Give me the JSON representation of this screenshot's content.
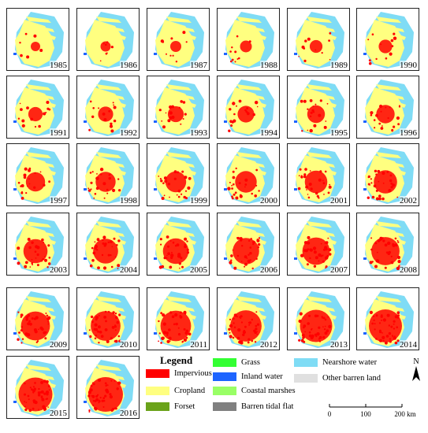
{
  "years": [
    "1985",
    "1986",
    "1987",
    "1988",
    "1989",
    "1990",
    "1991",
    "1992",
    "1993",
    "1994",
    "1995",
    "1996",
    "1997",
    "1998",
    "1999",
    "2000",
    "2001",
    "2002",
    "2003",
    "2004",
    "2005",
    "2006",
    "2007",
    "2008",
    "2009",
    "2010",
    "2011",
    "2012",
    "2013",
    "2014",
    "2015",
    "2016"
  ],
  "legend": {
    "title": "Legend",
    "items": [
      {
        "label": "Impervious",
        "color": "#ff0000"
      },
      {
        "label": "Cropland",
        "color": "#ffff80"
      },
      {
        "label": "Forset",
        "color": "#6aa31a"
      },
      {
        "label": "Grass",
        "color": "#33ff33"
      },
      {
        "label": "Inland water",
        "color": "#1e64ff"
      },
      {
        "label": "Coastal marshes",
        "color": "#99ff66"
      },
      {
        "label": "Barren tidal flat",
        "color": "#808080"
      },
      {
        "label": "Nearshore water",
        "color": "#7fdcf5"
      },
      {
        "label": "Other barren land",
        "color": "#e0e0e0"
      }
    ]
  },
  "north_label": "N",
  "scale": {
    "ticks": [
      "0",
      "100",
      "200 km"
    ]
  }
}
